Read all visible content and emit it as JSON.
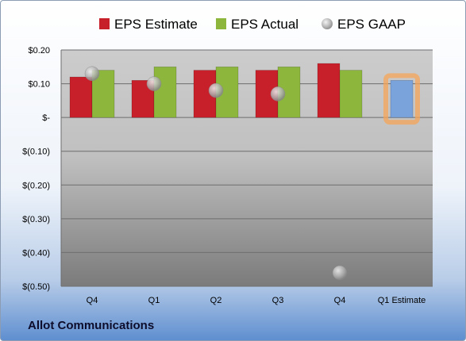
{
  "company": "Allot Communications",
  "chart_data": {
    "type": "bar",
    "categories": [
      "Q4",
      "Q1",
      "Q2",
      "Q3",
      "Q4",
      "Q1 Estimate"
    ],
    "series": [
      {
        "name": "EPS Estimate",
        "type": "bar",
        "color": "#c8202a",
        "values": [
          0.12,
          0.11,
          0.14,
          0.14,
          0.16,
          null
        ]
      },
      {
        "name": "EPS Actual",
        "type": "bar",
        "color": "#8cb63c",
        "values": [
          0.14,
          0.15,
          0.15,
          0.15,
          0.14,
          null
        ]
      },
      {
        "name": "EPS GAAP",
        "type": "scatter",
        "color": "#a9a9a9",
        "values": [
          0.13,
          0.1,
          0.08,
          0.07,
          -0.46,
          null
        ]
      },
      {
        "name": "",
        "type": "bar",
        "color": "#7aa3dc",
        "highlight": "#f6a55a",
        "values": [
          null,
          null,
          null,
          null,
          null,
          0.11
        ]
      }
    ],
    "ylim": [
      -0.5,
      0.2
    ],
    "yticks": [
      0.2,
      0.1,
      0,
      -0.1,
      -0.2,
      -0.3,
      -0.4,
      -0.5
    ],
    "ytick_labels": [
      "$0.20",
      "$0.10",
      "$-",
      "$(0.10)",
      "$(0.20)",
      "$(0.30)",
      "$(0.40)",
      "$(0.50)"
    ],
    "grid": true,
    "legend_position": "top"
  }
}
